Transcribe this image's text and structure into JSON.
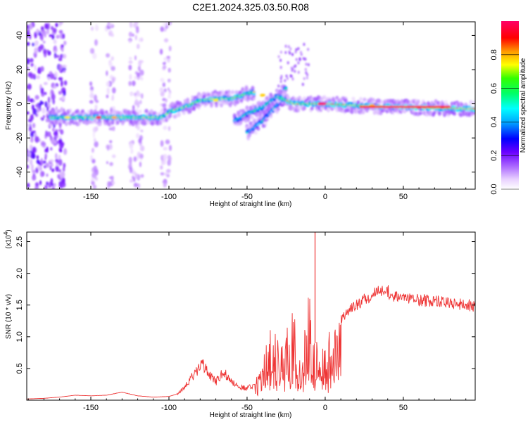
{
  "title": "C2E1.2024.325.03.50.R08",
  "chart_data": [
    {
      "type": "heatmap",
      "xlabel": "Height of straight line (km)",
      "ylabel": "Frequency (Hz)",
      "xlim": [
        -191,
        96
      ],
      "ylim": [
        -50,
        48
      ],
      "xticks": [
        -150,
        -100,
        -50,
        0,
        50
      ],
      "yticks": [
        -40,
        -20,
        0,
        20,
        40
      ],
      "colorbar": {
        "label": "Normalized spectral amplitude",
        "range": [
          0,
          1
        ],
        "ticks": [
          0.0,
          0.2,
          0.4,
          0.6,
          0.8
        ],
        "colors": [
          "#ffffff",
          "#cc99ff",
          "#8800ff",
          "#0000ff",
          "#00ffff",
          "#00ff00",
          "#ffff00",
          "#ff8800",
          "#ff0000",
          "#ff0066"
        ]
      },
      "ridges": [
        {
          "x": [
            -176,
            -150,
            -125,
            -105,
            -98,
            -90,
            -80,
            -70,
            -60,
            -50,
            -45
          ],
          "y": [
            -8,
            -8,
            -8,
            -8,
            -4,
            -2,
            2,
            3,
            3,
            6,
            7
          ],
          "amplitude": 0.9
        },
        {
          "x": [
            -58,
            -50,
            -40,
            -30,
            -25
          ],
          "y": [
            -10,
            -6,
            -2,
            5,
            9
          ],
          "amplitude": 0.6
        },
        {
          "x": [
            -50,
            -40,
            -32,
            -26
          ],
          "y": [
            -17,
            -10,
            -2,
            4
          ],
          "amplitude": 0.5
        },
        {
          "x": [
            -30,
            -20,
            -10,
            0,
            20,
            50,
            96
          ],
          "y": [
            4,
            0,
            0,
            0,
            -1,
            -2,
            -3
          ],
          "amplitude": 1.0
        }
      ]
    },
    {
      "type": "line",
      "xlabel": "Height of straight line (km)",
      "ylabel": "SNR (10 * v/v)",
      "y_multiplier_label": "(x10",
      "y_multiplier_exp": "4",
      "y_multiplier_close": ")",
      "xlim": [
        -191,
        96
      ],
      "ylim": [
        0,
        2.65
      ],
      "xticks": [
        -150,
        -100,
        -50,
        0,
        50
      ],
      "yticks": [
        0.5,
        1.0,
        1.5,
        2.0,
        2.5
      ],
      "series": [
        {
          "color": "#ee3333",
          "x": [
            -191,
            -180,
            -170,
            -160,
            -150,
            -140,
            -130,
            -120,
            -110,
            -100,
            -95,
            -90,
            -85,
            -80,
            -78,
            -75,
            -70,
            -65,
            -60,
            -55,
            -50,
            -45,
            -40,
            -38,
            -35,
            -30,
            -25,
            -20,
            -15,
            -12,
            -10,
            -8,
            -5,
            -2,
            0,
            5,
            10,
            15,
            20,
            25,
            30,
            35,
            40,
            45,
            50,
            55,
            60,
            65,
            70,
            75,
            80,
            85,
            90,
            96
          ],
          "y": [
            0.02,
            0.03,
            0.05,
            0.08,
            0.07,
            0.08,
            0.13,
            0.07,
            0.05,
            0.06,
            0.1,
            0.25,
            0.45,
            0.6,
            0.7,
            0.5,
            0.35,
            0.55,
            0.35,
            0.25,
            0.22,
            0.3,
            0.6,
            1.0,
            1.25,
            1.0,
            1.3,
            1.45,
            1.0,
            1.3,
            1.9,
            0.9,
            1.2,
            0.8,
            1.0,
            1.2,
            1.35,
            1.5,
            1.6,
            1.7,
            1.78,
            1.85,
            1.82,
            1.75,
            1.72,
            1.7,
            1.68,
            1.67,
            1.66,
            1.65,
            1.63,
            1.62,
            1.6,
            1.58
          ],
          "peaks": [
            {
              "x": -6.5,
              "y": 2.65
            }
          ]
        }
      ]
    }
  ]
}
